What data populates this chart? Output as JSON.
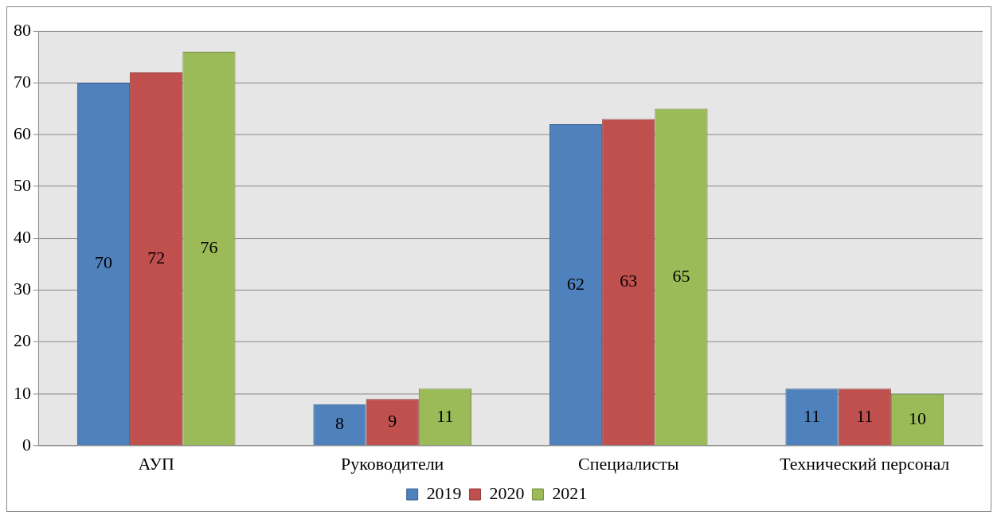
{
  "chart_data": {
    "type": "bar",
    "categories": [
      "АУП",
      "Руководители",
      "Специалисты",
      "Технический персонал"
    ],
    "series": [
      {
        "name": "2019",
        "color": "#4f81bd",
        "values": [
          70,
          8,
          62,
          11
        ]
      },
      {
        "name": "2020",
        "color": "#c0504d",
        "values": [
          72,
          9,
          63,
          11
        ]
      },
      {
        "name": "2021",
        "color": "#9bbb59",
        "values": [
          76,
          11,
          65,
          10
        ]
      }
    ],
    "ylim": [
      0,
      80
    ],
    "yticks": [
      0,
      10,
      20,
      30,
      40,
      50,
      60,
      70,
      80
    ],
    "grid": "y",
    "legend": "bottom",
    "data_labels": true
  }
}
